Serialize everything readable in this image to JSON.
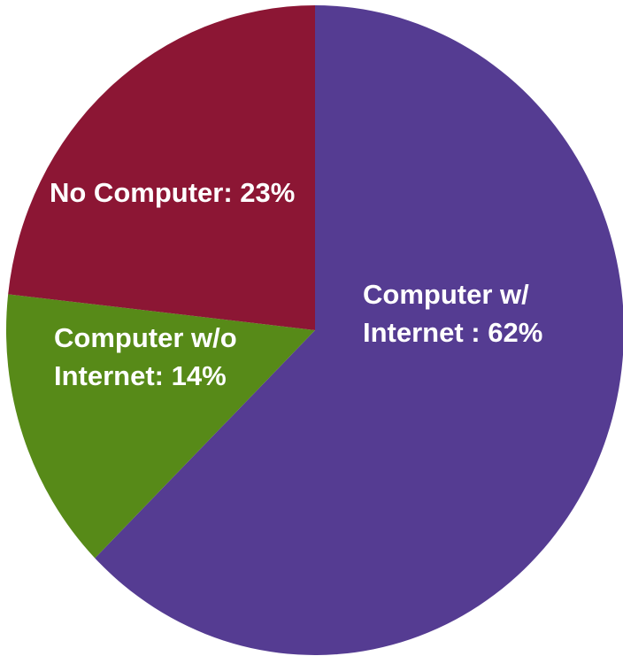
{
  "chart_data": {
    "type": "pie",
    "slices": [
      {
        "name": "Computer w/ Internet",
        "value": 62,
        "color": "#553C92",
        "label_lines": [
          "Computer w/",
          "Internet : 62%"
        ],
        "label_color": "#ffffff"
      },
      {
        "name": "Computer w/o Internet",
        "value": 14,
        "color": "#578A18",
        "label_lines": [
          "Computer w/o",
          "Internet: 14%"
        ],
        "label_color": "#ffffff"
      },
      {
        "name": "No Computer",
        "value": 23,
        "color": "#8C1634",
        "label_lines": [
          "No Computer: 23%"
        ],
        "label_color": "#ffffff"
      }
    ],
    "start_angle_deg": 0,
    "direction": "clockwise",
    "legend": "none"
  }
}
